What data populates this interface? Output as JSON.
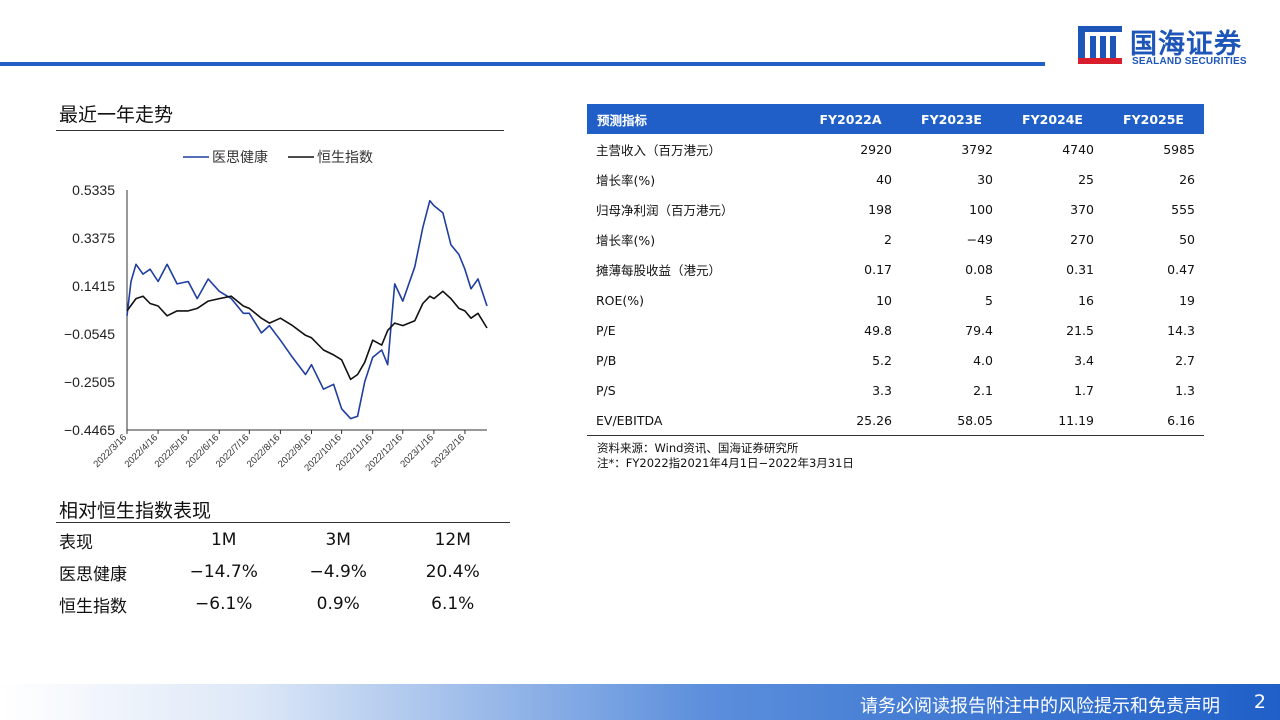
{
  "logo": {
    "cn": "国海证券",
    "en": "SEALAND SECURITIES"
  },
  "trend": {
    "title": "最近一年走势",
    "chart_data": {
      "type": "line",
      "title": "",
      "legend": "top",
      "y_ticks": [
        "0.5335",
        "0.3375",
        "0.1415",
        "-0.0545",
        "-0.2505",
        "-0.4465"
      ],
      "ylim": [
        -0.4465,
        0.5335
      ],
      "x_ticks": [
        "2022/3/16",
        "2022/4/16",
        "2022/5/16",
        "2022/6/16",
        "2022/7/16",
        "2022/8/16",
        "2022/9/16",
        "2022/10/16",
        "2022/11/16",
        "2022/12/16",
        "2023/1/16",
        "2023/2/16"
      ],
      "series": [
        {
          "name": "医思健康",
          "color": "#1f3ea0",
          "points": [
            [
              "2022/3/16",
              0.02
            ],
            [
              "2022/3/20",
              0.16
            ],
            [
              "2022/3/25",
              0.23
            ],
            [
              "2022/4/1",
              0.19
            ],
            [
              "2022/4/8",
              0.21
            ],
            [
              "2022/4/16",
              0.16
            ],
            [
              "2022/4/25",
              0.23
            ],
            [
              "2022/5/5",
              0.15
            ],
            [
              "2022/5/16",
              0.16
            ],
            [
              "2022/5/25",
              0.09
            ],
            [
              "2022/6/5",
              0.17
            ],
            [
              "2022/6/16",
              0.12
            ],
            [
              "2022/6/28",
              0.09
            ],
            [
              "2022/7/10",
              0.03
            ],
            [
              "2022/7/16",
              0.03
            ],
            [
              "2022/7/28",
              -0.05
            ],
            [
              "2022/8/5",
              -0.02
            ],
            [
              "2022/8/16",
              -0.08
            ],
            [
              "2022/8/28",
              -0.15
            ],
            [
              "2022/9/10",
              -0.22
            ],
            [
              "2022/9/16",
              -0.18
            ],
            [
              "2022/9/28",
              -0.28
            ],
            [
              "2022/10/8",
              -0.26
            ],
            [
              "2022/10/16",
              -0.36
            ],
            [
              "2022/10/25",
              -0.4
            ],
            [
              "2022/11/1",
              -0.39
            ],
            [
              "2022/11/8",
              -0.25
            ],
            [
              "2022/11/16",
              -0.15
            ],
            [
              "2022/11/25",
              -0.12
            ],
            [
              "2022/12/1",
              -0.18
            ],
            [
              "2022/12/8",
              0.15
            ],
            [
              "2022/12/16",
              0.08
            ],
            [
              "2022/12/28",
              0.22
            ],
            [
              "2023/1/5",
              0.38
            ],
            [
              "2023/1/12",
              0.49
            ],
            [
              "2023/1/16",
              0.47
            ],
            [
              "2023/1/25",
              0.44
            ],
            [
              "2023/2/2",
              0.31
            ],
            [
              "2023/2/10",
              0.27
            ],
            [
              "2023/2/16",
              0.21
            ],
            [
              "2023/2/22",
              0.13
            ],
            [
              "2023/3/1",
              0.17
            ],
            [
              "2023/3/10",
              0.06
            ]
          ]
        },
        {
          "name": "恒生指数",
          "color": "#111111",
          "points": [
            [
              "2022/3/16",
              0.04
            ],
            [
              "2022/3/25",
              0.09
            ],
            [
              "2022/4/1",
              0.1
            ],
            [
              "2022/4/8",
              0.07
            ],
            [
              "2022/4/16",
              0.06
            ],
            [
              "2022/4/25",
              0.02
            ],
            [
              "2022/5/5",
              0.04
            ],
            [
              "2022/5/16",
              0.04
            ],
            [
              "2022/5/25",
              0.05
            ],
            [
              "2022/6/5",
              0.08
            ],
            [
              "2022/6/16",
              0.09
            ],
            [
              "2022/6/28",
              0.1
            ],
            [
              "2022/7/10",
              0.06
            ],
            [
              "2022/7/16",
              0.05
            ],
            [
              "2022/7/28",
              0.01
            ],
            [
              "2022/8/5",
              -0.01
            ],
            [
              "2022/8/16",
              0.01
            ],
            [
              "2022/8/28",
              -0.02
            ],
            [
              "2022/9/10",
              -0.06
            ],
            [
              "2022/9/16",
              -0.07
            ],
            [
              "2022/9/28",
              -0.12
            ],
            [
              "2022/10/8",
              -0.14
            ],
            [
              "2022/10/16",
              -0.16
            ],
            [
              "2022/10/25",
              -0.24
            ],
            [
              "2022/11/1",
              -0.22
            ],
            [
              "2022/11/8",
              -0.17
            ],
            [
              "2022/11/16",
              -0.08
            ],
            [
              "2022/11/25",
              -0.1
            ],
            [
              "2022/12/1",
              -0.04
            ],
            [
              "2022/12/8",
              -0.01
            ],
            [
              "2022/12/16",
              -0.02
            ],
            [
              "2022/12/28",
              0.0
            ],
            [
              "2023/1/5",
              0.07
            ],
            [
              "2023/1/12",
              0.1
            ],
            [
              "2023/1/16",
              0.09
            ],
            [
              "2023/1/25",
              0.12
            ],
            [
              "2023/2/2",
              0.09
            ],
            [
              "2023/2/10",
              0.05
            ],
            [
              "2023/2/16",
              0.04
            ],
            [
              "2023/2/22",
              0.01
            ],
            [
              "2023/3/1",
              0.03
            ],
            [
              "2023/3/10",
              -0.03
            ]
          ]
        }
      ]
    }
  },
  "perf": {
    "title": "相对恒生指数表现",
    "header": [
      "表现",
      "1M",
      "3M",
      "12M"
    ],
    "rows": [
      [
        "医思健康",
        "−14.7%",
        "−4.9%",
        "20.4%"
      ],
      [
        "恒生指数",
        "−6.1%",
        "0.9%",
        "6.1%"
      ]
    ]
  },
  "forecast": {
    "header": [
      "预测指标",
      "FY2022A",
      "FY2023E",
      "FY2024E",
      "FY2025E"
    ],
    "rows": [
      [
        "主营收入（百万港元）",
        "2920",
        "3792",
        "4740",
        "5985"
      ],
      [
        "增长率(%)",
        "40",
        "30",
        "25",
        "26"
      ],
      [
        "归母净利润（百万港元）",
        "198",
        "100",
        "370",
        "555"
      ],
      [
        "增长率(%)",
        "2",
        "−49",
        "270",
        "50"
      ],
      [
        "摊薄每股收益（港元）",
        "0.17",
        "0.08",
        "0.31",
        "0.47"
      ],
      [
        "ROE(%)",
        "10",
        "5",
        "16",
        "19"
      ],
      [
        "P/E",
        "49.8",
        "79.4",
        "21.5",
        "14.3"
      ],
      [
        "P/B",
        "5.2",
        "4.0",
        "3.4",
        "2.7"
      ],
      [
        "P/S",
        "3.3",
        "2.1",
        "1.7",
        "1.3"
      ],
      [
        "EV/EBITDA",
        "25.26",
        "58.05",
        "11.19",
        "6.16"
      ]
    ],
    "source": "资料来源：Wind资讯、国海证券研究所",
    "note": "注*：FY2022指2021年4月1日−2022年3月31日"
  },
  "footer": {
    "disclaimer": "请务必阅读报告附注中的风险提示和免责声明",
    "page": "2"
  }
}
